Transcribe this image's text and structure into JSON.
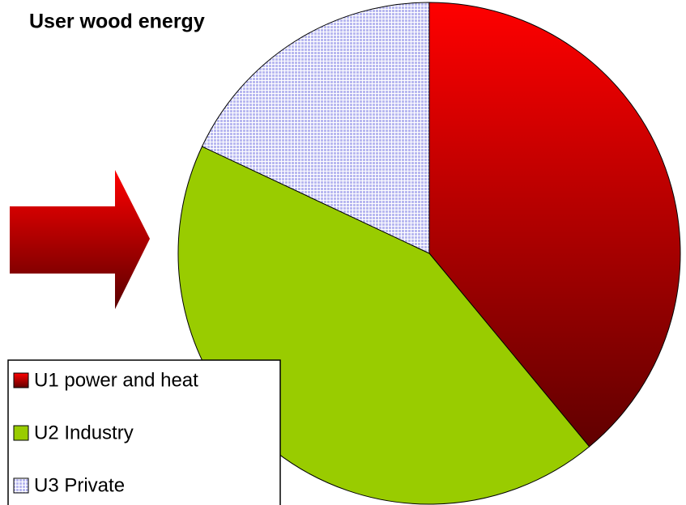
{
  "chart_data": {
    "type": "pie",
    "title": "User wood energy",
    "categories": [
      "U1 power and heat",
      "U2 Industry",
      "U3 Private"
    ],
    "values": [
      39,
      43,
      18
    ],
    "colors": [
      "#ff0000",
      "#99cc00",
      "#b8b8f0"
    ]
  }
}
